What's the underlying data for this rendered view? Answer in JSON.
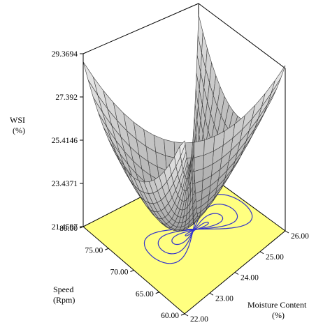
{
  "chart_data": {
    "type": "surface3d",
    "title": "",
    "zlabel": [
      "WSI",
      "(%)"
    ],
    "ylabel": [
      "Speed",
      "(Rpm)"
    ],
    "xlabel": [
      "Moisture Content",
      "(%)"
    ],
    "z_ticks": [
      "29.3694",
      "27.392",
      "25.4146",
      "23.4371",
      "21.4597"
    ],
    "speed_ticks": [
      "80.00",
      "75.00",
      "70.00",
      "65.00",
      "60.00"
    ],
    "moisture_ticks": [
      "26.00",
      "25.00",
      "24.00",
      "23.00",
      "22.00"
    ],
    "zlim": [
      21.4597,
      29.3694
    ],
    "speed_range": [
      60,
      80
    ],
    "moisture_range": [
      22,
      26
    ],
    "contour_fill_color": "#ffff80",
    "contour_line_color": "#3333cc",
    "surface_color": "#bdbdbd",
    "grid_resolution": 20
  }
}
